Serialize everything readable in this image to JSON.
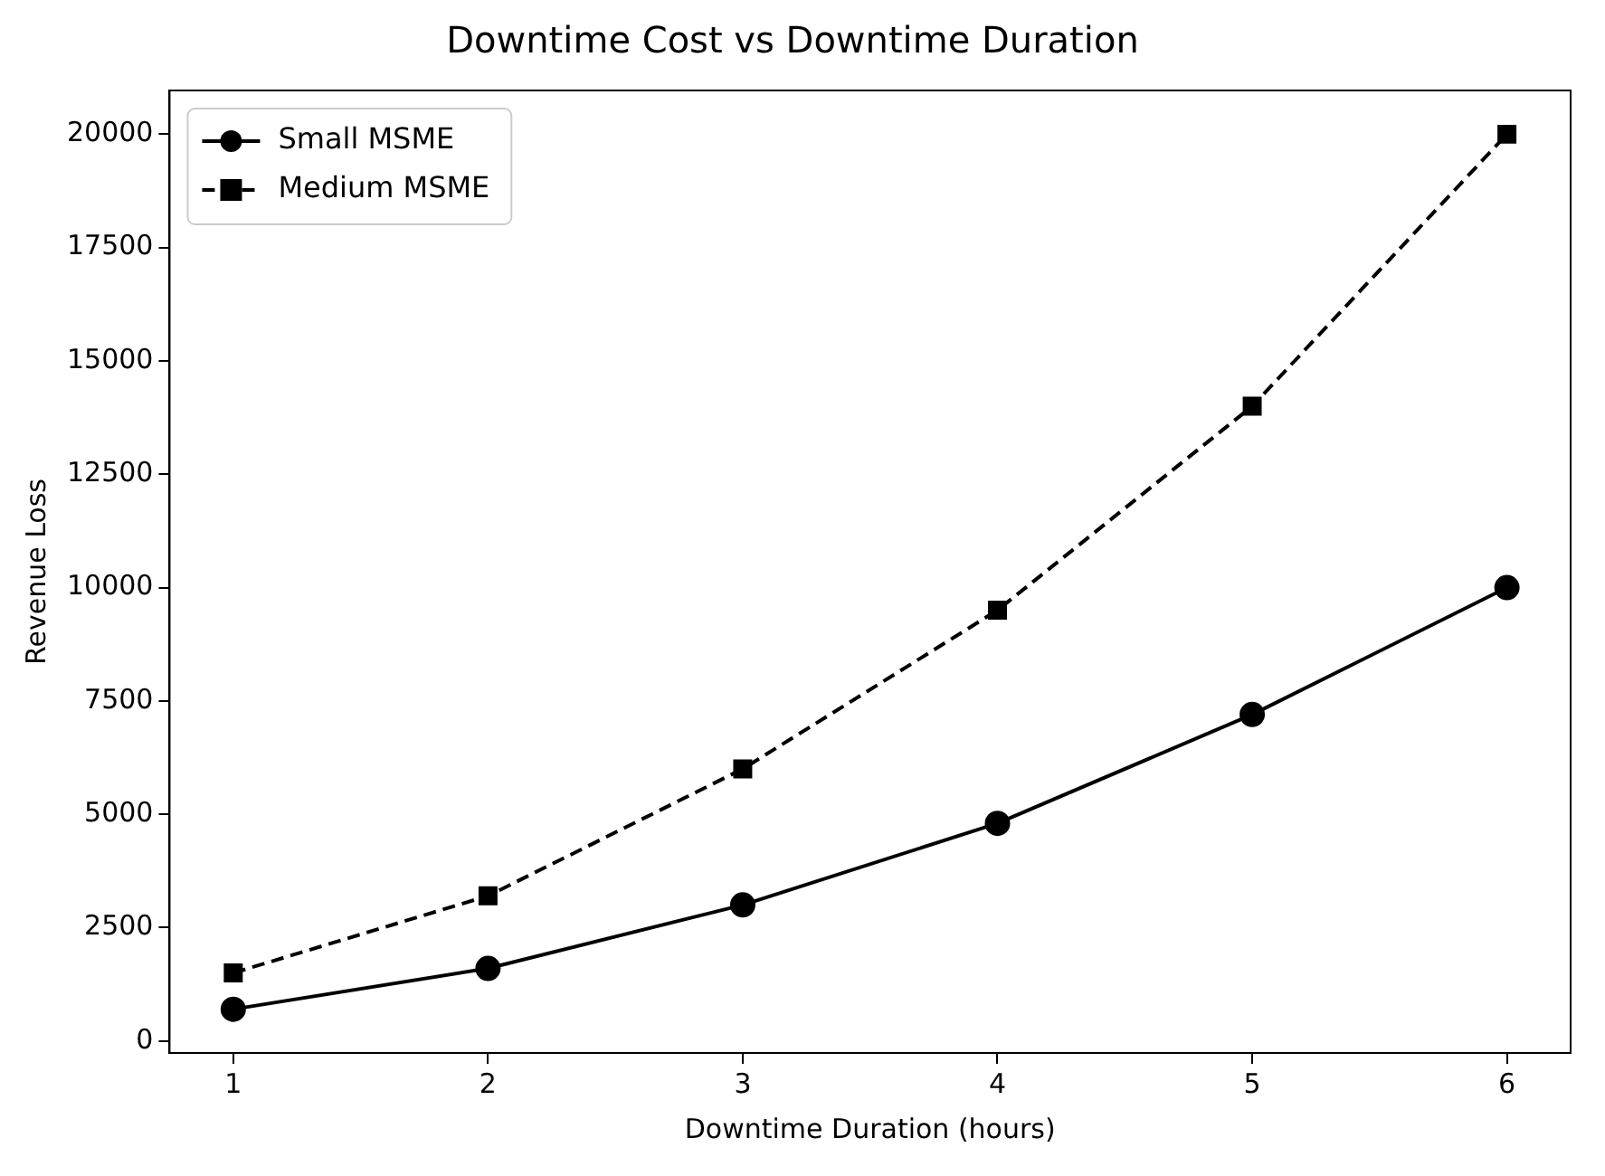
{
  "chart_data": {
    "type": "line",
    "title": "Downtime Cost vs Downtime Duration",
    "xlabel": "Downtime Duration (hours)",
    "ylabel": "Revenue Loss",
    "x": [
      1,
      2,
      3,
      4,
      5,
      6
    ],
    "series": [
      {
        "name": "Small MSME",
        "color": "#000000",
        "marker": "circle",
        "line_style": "solid",
        "values": [
          700,
          1600,
          3000,
          4800,
          7200,
          10000
        ]
      },
      {
        "name": "Medium MSME",
        "color": "#000000",
        "marker": "square",
        "line_style": "dashed",
        "values": [
          1500,
          3200,
          6000,
          9500,
          14000,
          20000
        ]
      }
    ],
    "xlim": [
      0.75,
      6.25
    ],
    "xticks": [
      1,
      2,
      3,
      4,
      5,
      6
    ],
    "ylim": [
      -265,
      20965
    ],
    "yticks": [
      0,
      2500,
      5000,
      7500,
      10000,
      12500,
      15000,
      17500,
      20000
    ],
    "grid": false,
    "legend": "top left"
  }
}
